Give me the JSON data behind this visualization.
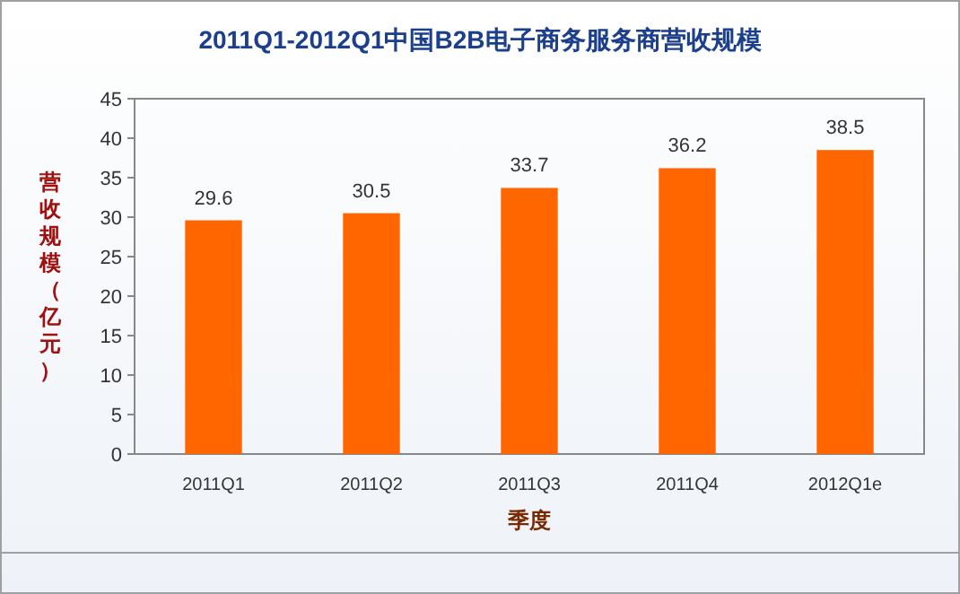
{
  "chart_data": {
    "type": "bar",
    "title": "2011Q1-2012Q1中国B2B电子商务服务商营收规模",
    "xlabel": "季度",
    "ylabel": "营收规模（亿元）",
    "categories": [
      "2011Q1",
      "2011Q2",
      "2011Q3",
      "2011Q4",
      "2012Q1e"
    ],
    "values": [
      29.6,
      30.5,
      33.7,
      36.2,
      38.5
    ],
    "color": "#ff6600",
    "ylim": [
      0,
      45
    ],
    "yticks": [
      0,
      5,
      10,
      15,
      20,
      25,
      30,
      35,
      40,
      45
    ],
    "data_labels": true,
    "grid": false
  }
}
